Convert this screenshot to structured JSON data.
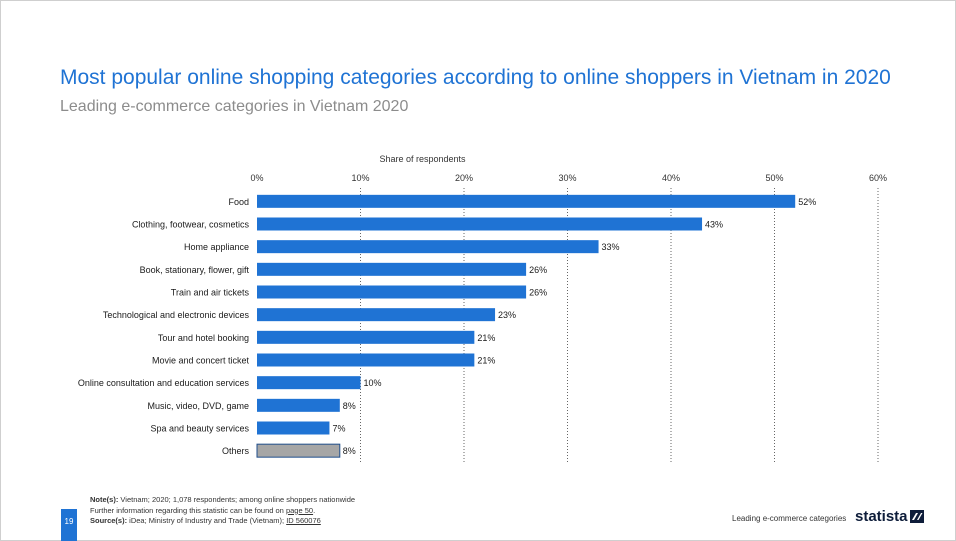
{
  "title": "Most popular online shopping categories according to online shoppers in Vietnam in 2020",
  "subtitle": "Leading e-commerce categories in Vietnam 2020",
  "chart_data": {
    "type": "bar",
    "orientation": "horizontal",
    "xlabel": "Share of respondents",
    "xlim": [
      0,
      60
    ],
    "xticks": [
      "0%",
      "10%",
      "20%",
      "30%",
      "40%",
      "50%",
      "60%"
    ],
    "xtick_values": [
      0,
      10,
      20,
      30,
      40,
      50,
      60
    ],
    "grid": "vertical dotted",
    "categories": [
      "Food",
      "Clothing, footwear, cosmetics",
      "Home appliance",
      "Book, stationary, flower, gift",
      "Train and air tickets",
      "Technological and electronic devices",
      "Tour and hotel booking",
      "Movie and concert ticket",
      "Online consultation and education services",
      "Music, video, DVD, game",
      "Spa and beauty services",
      "Others"
    ],
    "values": [
      52,
      43,
      33,
      26,
      26,
      23,
      21,
      21,
      10,
      8,
      7,
      8
    ],
    "value_labels": [
      "52%",
      "43%",
      "33%",
      "26%",
      "26%",
      "23%",
      "21%",
      "21%",
      "10%",
      "8%",
      "7%",
      "8%"
    ],
    "colors": {
      "bar": "#1f73d4",
      "other_bar": "#a6a6a6",
      "grid": "#666666"
    },
    "highlight_gray_index": 11
  },
  "footer": {
    "note_label": "Note(s):",
    "note_text": " Vietnam; 2020; 1,078 respondents; among online shoppers nationwide",
    "further_text": "Further information regarding this statistic can be found on ",
    "further_link": "page 50",
    "further_end": ".",
    "source_label": "Source(s):",
    "source_text": " iDea; Ministry of Industry and Trade (Vietnam); ",
    "source_link": "ID 560076",
    "page_number": "19",
    "footer_label": "Leading e-commerce categories",
    "brand": "statista"
  }
}
